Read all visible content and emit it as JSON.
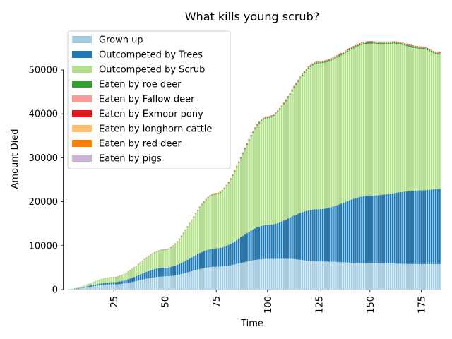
{
  "chart_data": {
    "type": "bar",
    "stacked": true,
    "title": "What kills young scrub?",
    "xlabel": "Time",
    "ylabel": "Amount Died",
    "xlim": [
      1,
      184
    ],
    "ylim": [
      0,
      59000
    ],
    "x_ticks": [
      25,
      50,
      75,
      100,
      125,
      150,
      175
    ],
    "y_ticks": [
      0,
      10000,
      20000,
      30000,
      40000,
      50000
    ],
    "x_tick_labels": [
      "25",
      "50",
      "75",
      "100",
      "125",
      "150",
      "175"
    ],
    "y_tick_labels": [
      "0",
      "10000",
      "20000",
      "30000",
      "40000",
      "50000"
    ],
    "grid": false,
    "legend_position": "top-left",
    "series": [
      {
        "name": "Grown up",
        "color": "#a6cee3",
        "control_points": [
          [
            1,
            0
          ],
          [
            25,
            1200
          ],
          [
            50,
            3000
          ],
          [
            75,
            5200
          ],
          [
            100,
            7000
          ],
          [
            110,
            7000
          ],
          [
            125,
            6400
          ],
          [
            150,
            6000
          ],
          [
            175,
            5800
          ],
          [
            184,
            5800
          ]
        ]
      },
      {
        "name": "Outcompeted by Trees",
        "color": "#1f78b4",
        "control_points": [
          [
            1,
            0
          ],
          [
            25,
            500
          ],
          [
            50,
            2000
          ],
          [
            75,
            4200
          ],
          [
            100,
            7700
          ],
          [
            125,
            11900
          ],
          [
            150,
            15400
          ],
          [
            175,
            16800
          ],
          [
            184,
            17100
          ]
        ]
      },
      {
        "name": "Outcompeted by Scrub",
        "color": "#b2df8a",
        "control_points": [
          [
            1,
            0
          ],
          [
            25,
            1100
          ],
          [
            50,
            4000
          ],
          [
            75,
            12300
          ],
          [
            100,
            24300
          ],
          [
            125,
            33200
          ],
          [
            150,
            34600
          ],
          [
            160,
            34100
          ],
          [
            175,
            32200
          ],
          [
            184,
            30600
          ]
        ]
      },
      {
        "name": "Eaten by roe deer",
        "color": "#33a02c",
        "control_points": [
          [
            1,
            0
          ],
          [
            50,
            80
          ],
          [
            100,
            220
          ],
          [
            150,
            300
          ],
          [
            184,
            300
          ]
        ]
      },
      {
        "name": "Eaten by Fallow deer",
        "color": "#fb9a99",
        "control_points": [
          [
            1,
            0
          ],
          [
            50,
            40
          ],
          [
            100,
            100
          ],
          [
            150,
            120
          ],
          [
            184,
            120
          ]
        ]
      },
      {
        "name": "Eaten by Exmoor pony",
        "color": "#e31a1c",
        "control_points": [
          [
            1,
            0
          ],
          [
            50,
            30
          ],
          [
            100,
            80
          ],
          [
            150,
            100
          ],
          [
            184,
            100
          ]
        ]
      },
      {
        "name": "Eaten by longhorn cattle",
        "color": "#fdbf6f",
        "control_points": [
          [
            1,
            0
          ],
          [
            50,
            10
          ],
          [
            100,
            20
          ],
          [
            184,
            20
          ]
        ]
      },
      {
        "name": "Eaten by red deer",
        "color": "#ff7f00",
        "control_points": [
          [
            1,
            0
          ],
          [
            50,
            10
          ],
          [
            100,
            20
          ],
          [
            184,
            20
          ]
        ]
      },
      {
        "name": "Eaten by pigs",
        "color": "#cab2d6",
        "control_points": [
          [
            1,
            0
          ],
          [
            50,
            5
          ],
          [
            100,
            10
          ],
          [
            184,
            10
          ]
        ]
      }
    ]
  }
}
